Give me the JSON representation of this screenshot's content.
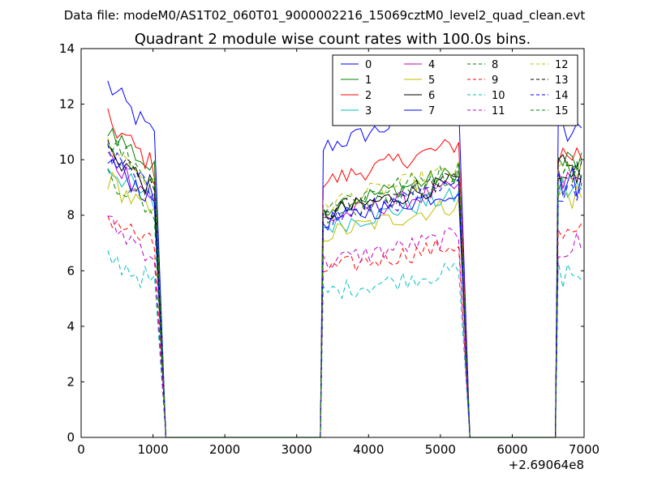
{
  "chart_data": {
    "type": "line",
    "suptitle": "Data file: modeM0/AS1T02_060T01_9000002216_15069cztM0_level2_quad_clean.evt",
    "title": "Quadrant 2 module wise count rates with 100.0s bins.",
    "xlabel": "",
    "ylabel": "",
    "x_offset_label": "+2.69064e8",
    "xlim": [
      0,
      7000
    ],
    "ylim": [
      0,
      14
    ],
    "xticks": [
      0,
      1000,
      2000,
      3000,
      4000,
      5000,
      6000,
      7000
    ],
    "xtick_labels": [
      "0",
      "1000",
      "2000",
      "3000",
      "4000",
      "5000",
      "6000",
      "7000"
    ],
    "yticks": [
      0,
      2,
      4,
      6,
      8,
      10,
      12,
      14
    ],
    "ytick_labels": [
      "0",
      "2",
      "4",
      "6",
      "8",
      "10",
      "12",
      "14"
    ],
    "legend_position": "top-right",
    "segments": [
      {
        "start": 370,
        "end": 1070
      },
      {
        "start": 3370,
        "end": 5300
      },
      {
        "start": 6640,
        "end": 6980
      }
    ],
    "series": [
      {
        "name": "0",
        "color": "#0000ff",
        "dash": "solid",
        "levels": [
          12.7,
          11.6,
          10.9
        ]
      },
      {
        "name": "1",
        "color": "#008000",
        "dash": "solid",
        "levels": [
          11.2,
          9.2,
          9.9
        ]
      },
      {
        "name": "2",
        "color": "#ff0000",
        "dash": "solid",
        "levels": [
          11.4,
          10.2,
          10.2
        ]
      },
      {
        "name": "3",
        "color": "#00bfbf",
        "dash": "solid",
        "levels": [
          9.8,
          8.4,
          8.9
        ]
      },
      {
        "name": "4",
        "color": "#bf00bf",
        "dash": "solid",
        "levels": [
          10.1,
          8.7,
          9.2
        ]
      },
      {
        "name": "5",
        "color": "#bfbf00",
        "dash": "solid",
        "levels": [
          9.3,
          8.1,
          8.7
        ]
      },
      {
        "name": "6",
        "color": "#000000",
        "dash": "solid",
        "levels": [
          10.4,
          8.9,
          9.6
        ]
      },
      {
        "name": "7",
        "color": "#0000ff",
        "dash": "solid",
        "levels": [
          10.0,
          8.6,
          9.2
        ]
      },
      {
        "name": "8",
        "color": "#008000",
        "dash": "dashed",
        "levels": [
          9.5,
          8.9,
          9.4
        ]
      },
      {
        "name": "9",
        "color": "#ff0000",
        "dash": "dashed",
        "levels": [
          8.0,
          6.7,
          7.2
        ]
      },
      {
        "name": "10",
        "color": "#00bfbf",
        "dash": "dashed",
        "levels": [
          6.5,
          5.8,
          5.9
        ]
      },
      {
        "name": "11",
        "color": "#bf00bf",
        "dash": "dashed",
        "levels": [
          7.7,
          7.0,
          6.9
        ]
      },
      {
        "name": "12",
        "color": "#bfbf00",
        "dash": "dashed",
        "levels": [
          10.6,
          9.3,
          9.6
        ]
      },
      {
        "name": "13",
        "color": "#000000",
        "dash": "dashed",
        "levels": [
          10.3,
          9.0,
          9.5
        ]
      },
      {
        "name": "14",
        "color": "#0000ff",
        "dash": "dashed",
        "levels": [
          10.2,
          8.7,
          9.1
        ]
      },
      {
        "name": "15",
        "color": "#008000",
        "dash": "dashed",
        "levels": [
          10.8,
          9.3,
          9.7
        ]
      }
    ]
  }
}
